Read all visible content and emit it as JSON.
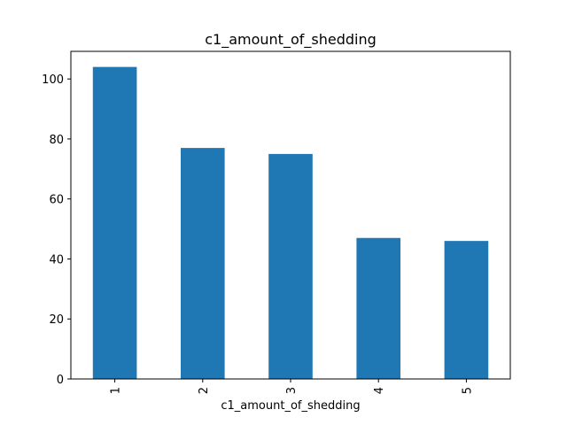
{
  "chart_data": {
    "type": "bar",
    "title": "c1_amount_of_shedding",
    "xlabel": "c1_amount_of_shedding",
    "ylabel": "",
    "categories": [
      "1",
      "2",
      "3",
      "4",
      "5"
    ],
    "values": [
      104,
      77,
      75,
      47,
      46
    ],
    "ylim": [
      0,
      109.2
    ],
    "yticks": [
      0,
      20,
      40,
      60,
      80,
      100
    ],
    "ytick_labels": [
      "0",
      "20",
      "40",
      "60",
      "80",
      "100"
    ],
    "grid": false,
    "legend": "none",
    "bar_color": "#1f77b4"
  }
}
